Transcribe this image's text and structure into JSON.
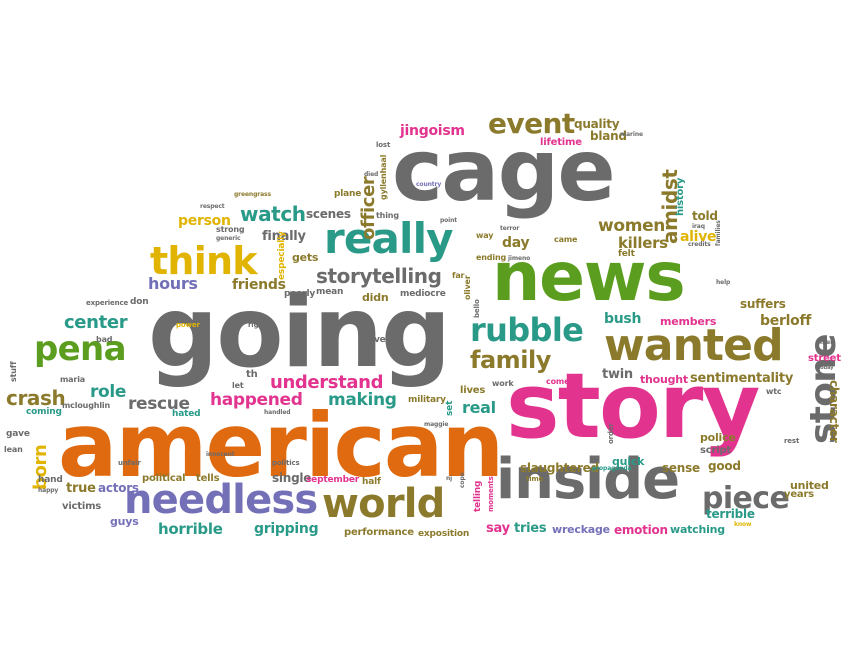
{
  "palette": {
    "gray": "#6b6b6b",
    "green": "#5b9e1f",
    "orange": "#e06a10",
    "pink": "#e2338f",
    "olive": "#8c7a2c",
    "purple": "#7470b8",
    "teal": "#2a9a88",
    "yellow": "#e0b400",
    "lightgray": "#9a9a9a"
  },
  "words": [
    {
      "text": "cage",
      "color": "gray"
    },
    {
      "text": "going",
      "color": "gray"
    },
    {
      "text": "american",
      "color": "orange"
    },
    {
      "text": "story",
      "color": "pink"
    },
    {
      "text": "news",
      "color": "green"
    },
    {
      "text": "inside",
      "color": "gray"
    },
    {
      "text": "really",
      "color": "teal"
    },
    {
      "text": "wanted",
      "color": "olive"
    },
    {
      "text": "needless",
      "color": "purple"
    },
    {
      "text": "world",
      "color": "olive"
    },
    {
      "text": "think",
      "color": "yellow"
    },
    {
      "text": "pena",
      "color": "green"
    },
    {
      "text": "rubble",
      "color": "teal"
    },
    {
      "text": "stone",
      "color": "gray"
    },
    {
      "text": "piece",
      "color": "gray"
    },
    {
      "text": "family",
      "color": "olive"
    },
    {
      "text": "event",
      "color": "olive"
    },
    {
      "text": "storytelling",
      "color": "gray"
    },
    {
      "text": "watch",
      "color": "teal"
    },
    {
      "text": "officer",
      "color": "olive"
    },
    {
      "text": "amidst",
      "color": "olive"
    },
    {
      "text": "crash",
      "color": "olive"
    },
    {
      "text": "center",
      "color": "teal"
    },
    {
      "text": "born",
      "color": "yellow"
    },
    {
      "text": "understand",
      "color": "pink"
    },
    {
      "text": "happened",
      "color": "pink"
    },
    {
      "text": "making",
      "color": "teal"
    },
    {
      "text": "rescue",
      "color": "gray"
    },
    {
      "text": "role",
      "color": "teal"
    },
    {
      "text": "hours",
      "color": "purple"
    },
    {
      "text": "women",
      "color": "olive"
    },
    {
      "text": "killers",
      "color": "olive"
    },
    {
      "text": "jingoism",
      "color": "pink"
    },
    {
      "text": "quality",
      "color": "olive"
    },
    {
      "text": "bland",
      "color": "olive"
    },
    {
      "text": "lifetime",
      "color": "pink"
    },
    {
      "text": "person",
      "color": "yellow"
    },
    {
      "text": "scenes",
      "color": "gray"
    },
    {
      "text": "finally",
      "color": "gray"
    },
    {
      "text": "day",
      "color": "olive"
    },
    {
      "text": "alive",
      "color": "yellow"
    },
    {
      "text": "told",
      "color": "olive"
    },
    {
      "text": "history",
      "color": "teal"
    },
    {
      "text": "friends",
      "color": "olive"
    },
    {
      "text": "bush",
      "color": "teal"
    },
    {
      "text": "berloff",
      "color": "olive"
    },
    {
      "text": "suffers",
      "color": "olive"
    },
    {
      "text": "members",
      "color": "pink"
    },
    {
      "text": "twin",
      "color": "gray"
    },
    {
      "text": "thought",
      "color": "pink"
    },
    {
      "text": "sentimentality",
      "color": "olive"
    },
    {
      "text": "real",
      "color": "teal"
    },
    {
      "text": "slaughtered",
      "color": "olive"
    },
    {
      "text": "sense",
      "color": "olive"
    },
    {
      "text": "good",
      "color": "olive"
    },
    {
      "text": "police",
      "color": "olive"
    },
    {
      "text": "script",
      "color": "gray"
    },
    {
      "text": "quick",
      "color": "teal"
    },
    {
      "text": "terrible",
      "color": "teal"
    },
    {
      "text": "united",
      "color": "olive"
    },
    {
      "text": "years",
      "color": "olive"
    },
    {
      "text": "character",
      "color": "olive"
    },
    {
      "text": "street",
      "color": "pink"
    },
    {
      "text": "say",
      "color": "pink"
    },
    {
      "text": "tries",
      "color": "teal"
    },
    {
      "text": "wreckage",
      "color": "purple"
    },
    {
      "text": "emotion",
      "color": "pink"
    },
    {
      "text": "watching",
      "color": "teal"
    },
    {
      "text": "horrible",
      "color": "teal"
    },
    {
      "text": "gripping",
      "color": "teal"
    },
    {
      "text": "performance",
      "color": "olive"
    },
    {
      "text": "exposition",
      "color": "olive"
    },
    {
      "text": "true",
      "color": "olive"
    },
    {
      "text": "actors",
      "color": "purple"
    },
    {
      "text": "guys",
      "color": "purple"
    },
    {
      "text": "victims",
      "color": "gray"
    },
    {
      "text": "single",
      "color": "gray"
    },
    {
      "text": "september",
      "color": "pink"
    },
    {
      "text": "half",
      "color": "olive"
    },
    {
      "text": "political",
      "color": "olive"
    },
    {
      "text": "tells",
      "color": "olive"
    },
    {
      "text": "hated",
      "color": "teal"
    },
    {
      "text": "coming",
      "color": "teal"
    },
    {
      "text": "maria",
      "color": "gray"
    },
    {
      "text": "mcloughlin",
      "color": "gray"
    },
    {
      "text": "gave",
      "color": "gray"
    },
    {
      "text": "hand",
      "color": "gray"
    },
    {
      "text": "stuff",
      "color": "gray"
    },
    {
      "text": "bad",
      "color": "gray"
    },
    {
      "text": "don",
      "color": "gray"
    },
    {
      "text": "experience",
      "color": "gray"
    },
    {
      "text": "power",
      "color": "yellow"
    },
    {
      "text": "right",
      "color": "gray"
    },
    {
      "text": "poorly",
      "color": "gray"
    },
    {
      "text": "mean",
      "color": "gray"
    },
    {
      "text": "didn",
      "color": "olive"
    },
    {
      "text": "mediocre",
      "color": "gray"
    },
    {
      "text": "gets",
      "color": "olive"
    },
    {
      "text": "especially",
      "color": "yellow"
    },
    {
      "text": "strong",
      "color": "gray"
    },
    {
      "text": "generic",
      "color": "gray"
    },
    {
      "text": "lean",
      "color": "gray"
    },
    {
      "text": "ve",
      "color": "gray"
    },
    {
      "text": "th",
      "color": "gray"
    },
    {
      "text": "let",
      "color": "gray"
    },
    {
      "text": "military",
      "color": "olive"
    },
    {
      "text": "set",
      "color": "teal"
    },
    {
      "text": "lives",
      "color": "olive"
    },
    {
      "text": "work",
      "color": "gray"
    },
    {
      "text": "come",
      "color": "pink"
    },
    {
      "text": "propaganda",
      "color": "teal"
    },
    {
      "text": "wtc",
      "color": "gray"
    },
    {
      "text": "rest",
      "color": "gray"
    },
    {
      "text": "know",
      "color": "yellow"
    },
    {
      "text": "came",
      "color": "olive"
    },
    {
      "text": "felt",
      "color": "olive"
    },
    {
      "text": "ending",
      "color": "olive"
    },
    {
      "text": "way",
      "color": "olive"
    },
    {
      "text": "terror",
      "color": "gray"
    },
    {
      "text": "point",
      "color": "gray"
    },
    {
      "text": "country",
      "color": "purple"
    },
    {
      "text": "far",
      "color": "olive"
    },
    {
      "text": "plane",
      "color": "olive"
    },
    {
      "text": "thing",
      "color": "gray"
    },
    {
      "text": "gyllenhaal",
      "color": "olive"
    },
    {
      "text": "greengrass",
      "color": "olive"
    },
    {
      "text": "respect",
      "color": "gray"
    },
    {
      "text": "lost",
      "color": "gray"
    },
    {
      "text": "died",
      "color": "gray"
    },
    {
      "text": "marine",
      "color": "gray"
    },
    {
      "text": "time",
      "color": "olive"
    },
    {
      "text": "iraq",
      "color": "gray"
    },
    {
      "text": "credits",
      "color": "gray"
    },
    {
      "text": "families",
      "color": "gray"
    },
    {
      "text": "help",
      "color": "gray"
    },
    {
      "text": "men",
      "color": "gray"
    },
    {
      "text": "today",
      "color": "gray"
    },
    {
      "text": "innocent",
      "color": "gray"
    },
    {
      "text": "handled",
      "color": "gray"
    },
    {
      "text": "unfair",
      "color": "gray"
    },
    {
      "text": "happy",
      "color": "gray"
    },
    {
      "text": "politics",
      "color": "gray"
    },
    {
      "text": "cope",
      "color": "gray"
    },
    {
      "text": "telling",
      "color": "pink"
    },
    {
      "text": "moments",
      "color": "pink"
    },
    {
      "text": "order",
      "color": "gray"
    },
    {
      "text": "oliver",
      "color": "olive"
    },
    {
      "text": "bello",
      "color": "gray"
    },
    {
      "text": "jimeno",
      "color": "gray"
    },
    {
      "text": "maggie",
      "color": "gray"
    },
    {
      "text": "nj",
      "color": "gray"
    }
  ]
}
